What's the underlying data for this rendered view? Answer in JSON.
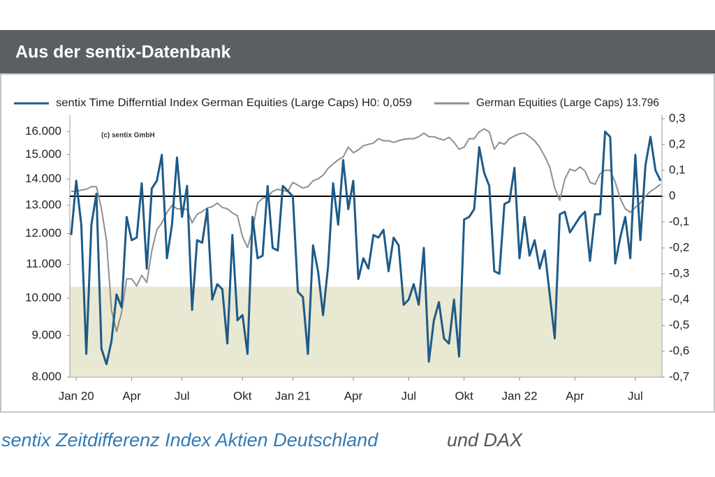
{
  "chart_data": {
    "type": "line",
    "title": "Aus der sentix-Datenbank",
    "annotation": "(c) sentix GmbH",
    "caption": [
      "sentix Zeitdifferenz Index Aktien Deutschland",
      "und DAX"
    ],
    "categories": [
      null,
      "Jan 20",
      null,
      null,
      null,
      null,
      null,
      null,
      null,
      null,
      null,
      null,
      "Apr",
      null,
      null,
      null,
      null,
      null,
      null,
      null,
      null,
      null,
      "Jul",
      null,
      null,
      null,
      null,
      null,
      null,
      null,
      null,
      null,
      null,
      null,
      "Okt",
      null,
      null,
      null,
      null,
      null,
      null,
      null,
      null,
      null,
      "Jan 21",
      null,
      null,
      null,
      null,
      null,
      null,
      null,
      null,
      null,
      null,
      null,
      "Apr",
      null,
      null,
      null,
      null,
      null,
      null,
      null,
      null,
      null,
      null,
      "Jul",
      null,
      null,
      null,
      null,
      null,
      null,
      null,
      null,
      null,
      null,
      "Okt",
      null,
      null,
      null,
      null,
      null,
      null,
      null,
      null,
      null,
      null,
      "Jan 22",
      null,
      null,
      null,
      null,
      null,
      null,
      null,
      null,
      null,
      null,
      "Apr",
      null,
      null,
      null,
      null,
      null,
      null,
      null,
      null,
      null,
      null,
      null,
      "Jul",
      null,
      null,
      null,
      null,
      null
    ],
    "series": [
      {
        "name": "sentix Time Differntial Index German Equities (Large Caps) H0: 0,059",
        "color": "#1d5a88",
        "axis": "y2",
        "values": [
          -0.15,
          0.06,
          -0.11,
          -0.61,
          -0.11,
          0.01,
          -0.59,
          -0.65,
          -0.56,
          -0.38,
          -0.43,
          -0.08,
          -0.17,
          -0.16,
          0.05,
          -0.28,
          0.03,
          0.06,
          0.16,
          -0.24,
          -0.11,
          0.15,
          -0.08,
          0.04,
          -0.44,
          -0.17,
          -0.18,
          -0.05,
          -0.4,
          -0.34,
          -0.36,
          -0.57,
          -0.15,
          -0.48,
          -0.46,
          -0.61,
          -0.08,
          -0.24,
          -0.23,
          0.04,
          -0.2,
          -0.21,
          0.04,
          0.02,
          0.0,
          -0.37,
          -0.39,
          -0.61,
          -0.19,
          -0.29,
          -0.46,
          -0.27,
          0.05,
          -0.11,
          0.14,
          -0.05,
          0.06,
          -0.32,
          -0.24,
          -0.28,
          -0.15,
          -0.16,
          -0.13,
          -0.29,
          -0.16,
          -0.19,
          -0.42,
          -0.4,
          -0.34,
          -0.42,
          -0.2,
          -0.64,
          -0.48,
          -0.41,
          -0.55,
          -0.57,
          -0.4,
          -0.62,
          -0.09,
          -0.08,
          -0.05,
          0.19,
          0.09,
          0.04,
          -0.29,
          -0.3,
          -0.03,
          -0.02,
          0.11,
          -0.24,
          -0.08,
          -0.23,
          -0.17,
          -0.28,
          -0.21,
          -0.38,
          -0.55,
          -0.07,
          -0.06,
          -0.14,
          -0.11,
          -0.08,
          -0.06,
          -0.25,
          -0.07,
          -0.07,
          0.25,
          0.23,
          -0.26,
          -0.16,
          -0.08,
          -0.24,
          0.16,
          -0.17,
          0.12,
          0.23,
          0.1,
          0.06
        ]
      },
      {
        "name": "German Equities (Large Caps) 13.796",
        "color": "#8e8e8e",
        "axis": "y",
        "values": [
          13520,
          13520,
          13570,
          13600,
          13700,
          13700,
          12870,
          11770,
          9660,
          9100,
          9600,
          10560,
          10560,
          10350,
          10670,
          10450,
          11430,
          12130,
          12370,
          12740,
          13000,
          12870,
          12870,
          12850,
          12370,
          12670,
          12770,
          12900,
          12950,
          13080,
          12920,
          12870,
          12720,
          12620,
          11890,
          11540,
          12130,
          13080,
          13260,
          13310,
          13520,
          13600,
          13550,
          13520,
          13870,
          13760,
          13650,
          13700,
          13930,
          14010,
          14150,
          14430,
          14610,
          14780,
          14900,
          15320,
          15080,
          15200,
          15380,
          15440,
          15500,
          15690,
          15600,
          15600,
          15530,
          15600,
          15660,
          15690,
          15690,
          15780,
          15940,
          15780,
          15780,
          15690,
          15630,
          15750,
          15530,
          15230,
          15320,
          15690,
          15690,
          16000,
          16130,
          16000,
          15230,
          15530,
          15440,
          15690,
          15810,
          15910,
          15940,
          15780,
          15600,
          15320,
          14930,
          14490,
          13650,
          13180,
          13990,
          14400,
          14320,
          14490,
          14320,
          13870,
          13790,
          14210,
          14350,
          14350,
          13870,
          13260,
          12870,
          12740,
          12920,
          13080,
          13340,
          13520,
          13650,
          13796
        ]
      }
    ],
    "ylim": [
      8000,
      16600
    ],
    "log_y": true,
    "yticks": [
      {
        "value": 8000,
        "label": "8.000"
      },
      {
        "value": 9000,
        "label": "9.000"
      },
      {
        "value": 10000,
        "label": "10.000"
      },
      {
        "value": 11000,
        "label": "11.000"
      },
      {
        "value": 12000,
        "label": "12.000"
      },
      {
        "value": 13000,
        "label": "13.000"
      },
      {
        "value": 14000,
        "label": "14.000"
      },
      {
        "value": 15000,
        "label": "15.000"
      },
      {
        "value": 16000,
        "label": "16.000"
      }
    ],
    "y2lim": [
      -0.7,
      0.3
    ],
    "y2ticks": [
      {
        "value": -0.7,
        "label": "-0,7"
      },
      {
        "value": -0.6,
        "label": "-0,6"
      },
      {
        "value": -0.5,
        "label": "-0,5"
      },
      {
        "value": -0.4,
        "label": "-0,4"
      },
      {
        "value": -0.3,
        "label": "-0,3"
      },
      {
        "value": -0.2,
        "label": "-0,2"
      },
      {
        "value": -0.1,
        "label": "-0,1"
      },
      0,
      {
        "value": 0.1,
        "label": "0,1"
      },
      {
        "value": 0.2,
        "label": "0,2"
      },
      {
        "value": 0.3,
        "label": "0,3"
      }
    ],
    "y2_band": [
      -0.7,
      -0.35
    ],
    "band_color": "#e9e8d2",
    "reference_line": 0,
    "grid": false
  }
}
